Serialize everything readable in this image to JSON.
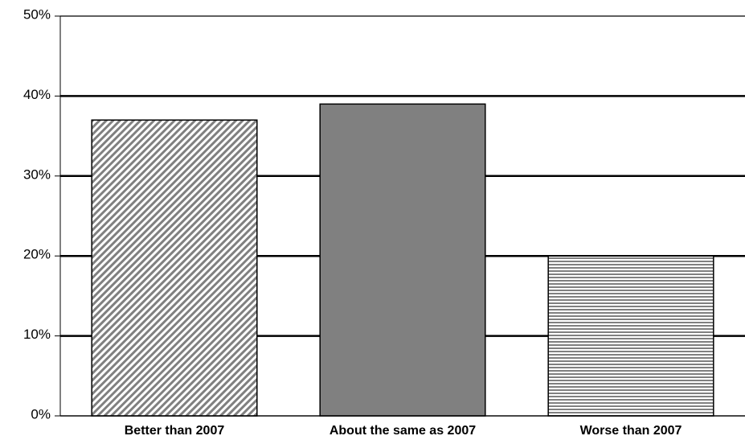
{
  "chart_data": {
    "type": "bar",
    "categories": [
      "Better than 2007",
      "About the same as 2007",
      "Worse than 2007"
    ],
    "values": [
      37,
      39,
      20
    ],
    "colors": [
      "#808080",
      "#808080",
      "#808080"
    ],
    "patterns": [
      "diagonal",
      "solid",
      "horizontal"
    ],
    "ylim": [
      0,
      50
    ],
    "yticks": [
      {
        "value": 0,
        "label": "0%"
      },
      {
        "value": 10,
        "label": "10%"
      },
      {
        "value": 20,
        "label": "20%"
      },
      {
        "value": 30,
        "label": "30%"
      },
      {
        "value": 40,
        "label": "40%"
      },
      {
        "value": 50,
        "label": "50%"
      }
    ],
    "grid": true
  }
}
